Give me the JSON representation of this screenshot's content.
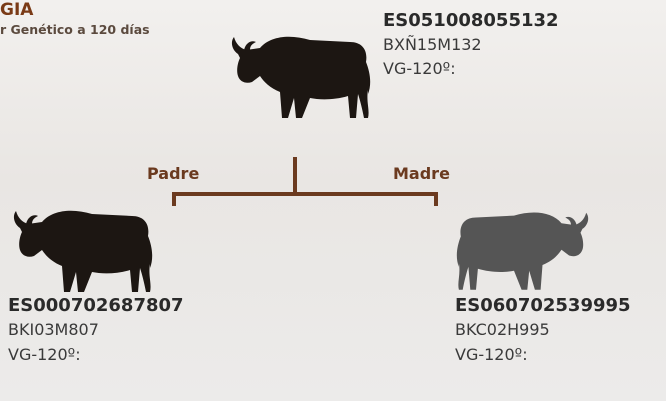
{
  "header": {
    "title": "GIA",
    "subtitle": "r Genético a 120 días"
  },
  "animal": {
    "id": "ES051008055132",
    "code": "BXÑ15M132",
    "vg": "VG-120º:"
  },
  "parents": {
    "father": {
      "label": "Padre",
      "id": "ES000702687807",
      "code": "BKI03M807",
      "vg": "VG-120º:"
    },
    "mother": {
      "label": "Madre",
      "id": "ES060702539995",
      "code": "BKC02H995",
      "vg": "VG-120º:"
    }
  }
}
